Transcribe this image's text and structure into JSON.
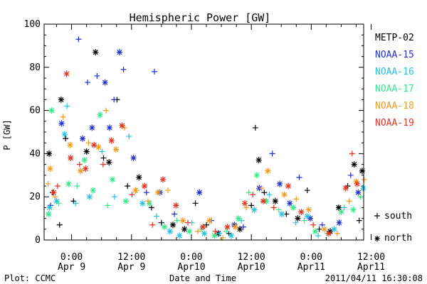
{
  "chart_data": {
    "type": "scatter",
    "title": "Hemispheric Power [GW]",
    "xlabel": "Date and Time",
    "ylabel": "P [GW]",
    "ylim": [
      0,
      100
    ],
    "yticks": [
      0,
      20,
      40,
      60,
      80,
      100
    ],
    "xlim": [
      -5.5,
      58.5
    ],
    "xtick_values": [
      0,
      12,
      24,
      36,
      48,
      60
    ],
    "xtick_labels": [
      {
        "time": "0:00",
        "date": "Apr 9"
      },
      {
        "time": "12:00",
        "date": "Apr 9"
      },
      {
        "time": "0:00",
        "date": "Apr10"
      },
      {
        "time": "12:00",
        "date": "Apr10"
      },
      {
        "time": "0:00",
        "date": "Apr11"
      },
      {
        "time": "12:00",
        "date": "Apr11"
      }
    ],
    "grid": false,
    "legend_placement": "right",
    "series": [
      {
        "name": "METP-02",
        "color": "#000000",
        "values": [
          {
            "x": -4.5,
            "y": 40,
            "h": "north"
          },
          {
            "x": -3.8,
            "y": 22,
            "h": "south"
          },
          {
            "x": -2.4,
            "y": 7,
            "h": "south"
          },
          {
            "x": -2.1,
            "y": 65,
            "h": "north"
          },
          {
            "x": -1.2,
            "y": 47,
            "h": "south"
          },
          {
            "x": 0.4,
            "y": 18,
            "h": "south"
          },
          {
            "x": 3.0,
            "y": 41,
            "h": "north"
          },
          {
            "x": 4.8,
            "y": 87,
            "h": "north"
          },
          {
            "x": 6.4,
            "y": 38,
            "h": "south"
          },
          {
            "x": 7.5,
            "y": 36,
            "h": "north"
          },
          {
            "x": 9.1,
            "y": 65,
            "h": "south"
          },
          {
            "x": 11.2,
            "y": 25,
            "h": "south"
          },
          {
            "x": 13.5,
            "y": 29,
            "h": "north"
          },
          {
            "x": 16.0,
            "y": 15,
            "h": "south"
          },
          {
            "x": 18.0,
            "y": 8,
            "h": "south"
          },
          {
            "x": 20.3,
            "y": 7,
            "h": "north"
          },
          {
            "x": 22.6,
            "y": 5,
            "h": "north"
          },
          {
            "x": 24.8,
            "y": 17,
            "h": "south"
          },
          {
            "x": 27.0,
            "y": 7,
            "h": "south"
          },
          {
            "x": 29.4,
            "y": 3,
            "h": "north"
          },
          {
            "x": 31.5,
            "y": 3,
            "h": "south"
          },
          {
            "x": 33.7,
            "y": 5,
            "h": "north"
          },
          {
            "x": 36.0,
            "y": 16,
            "h": "south"
          },
          {
            "x": 36.8,
            "y": 52,
            "h": "south"
          },
          {
            "x": 37.5,
            "y": 37,
            "h": "north"
          },
          {
            "x": 38.6,
            "y": 22,
            "h": "south"
          },
          {
            "x": 40.8,
            "y": 18,
            "h": "north"
          },
          {
            "x": 43.0,
            "y": 12,
            "h": "south"
          },
          {
            "x": 45.3,
            "y": 10,
            "h": "north"
          },
          {
            "x": 47.2,
            "y": 23,
            "h": "south"
          },
          {
            "x": 49.6,
            "y": 5,
            "h": "south"
          },
          {
            "x": 51.8,
            "y": 4,
            "h": "north"
          },
          {
            "x": 53.5,
            "y": 15,
            "h": "north"
          },
          {
            "x": 55.3,
            "y": 25,
            "h": "south"
          },
          {
            "x": 56.6,
            "y": 35,
            "h": "north"
          },
          {
            "x": 57.6,
            "y": 9,
            "h": "south"
          },
          {
            "x": 58.2,
            "y": 32,
            "h": "north"
          }
        ]
      },
      {
        "name": "NOAA-15",
        "color": "#1f2fd6",
        "values": [
          {
            "x": -4.2,
            "y": 16,
            "h": "south"
          },
          {
            "x": -2.0,
            "y": 54,
            "h": "north"
          },
          {
            "x": 1.4,
            "y": 93,
            "h": "south"
          },
          {
            "x": 2.2,
            "y": 47,
            "h": "north"
          },
          {
            "x": 3.2,
            "y": 73,
            "h": "south"
          },
          {
            "x": 4.1,
            "y": 52,
            "h": "north"
          },
          {
            "x": 5.1,
            "y": 76,
            "h": "south"
          },
          {
            "x": 6.7,
            "y": 73,
            "h": "north"
          },
          {
            "x": 7.6,
            "y": 52,
            "h": "north"
          },
          {
            "x": 8.5,
            "y": 65,
            "h": "south"
          },
          {
            "x": 9.6,
            "y": 87,
            "h": "north"
          },
          {
            "x": 10.4,
            "y": 79,
            "h": "south"
          },
          {
            "x": 12.4,
            "y": 38,
            "h": "north"
          },
          {
            "x": 15.0,
            "y": 22,
            "h": "south"
          },
          {
            "x": 16.6,
            "y": 78,
            "h": "south"
          },
          {
            "x": 17.7,
            "y": 22,
            "h": "north"
          },
          {
            "x": 20.6,
            "y": 12,
            "h": "south"
          },
          {
            "x": 25.6,
            "y": 22,
            "h": "north"
          },
          {
            "x": 28.0,
            "y": 9,
            "h": "south"
          },
          {
            "x": 32.6,
            "y": 7,
            "h": "north"
          },
          {
            "x": 34.4,
            "y": 6,
            "h": "south"
          },
          {
            "x": 37.6,
            "y": 24,
            "h": "north"
          },
          {
            "x": 40.2,
            "y": 40,
            "h": "south"
          },
          {
            "x": 41.7,
            "y": 26,
            "h": "north"
          },
          {
            "x": 43.7,
            "y": 17,
            "h": "north"
          },
          {
            "x": 45.6,
            "y": 29,
            "h": "south"
          },
          {
            "x": 47.8,
            "y": 10,
            "h": "north"
          },
          {
            "x": 50.2,
            "y": 7,
            "h": "south"
          },
          {
            "x": 53.6,
            "y": 8,
            "h": "north"
          },
          {
            "x": 55.9,
            "y": 30,
            "h": "south"
          },
          {
            "x": 57.4,
            "y": 22,
            "h": "north"
          }
        ]
      },
      {
        "name": "NOAA-16",
        "color": "#21c3e0",
        "values": [
          {
            "x": -4.4,
            "y": 15,
            "h": "north"
          },
          {
            "x": -3.0,
            "y": 18,
            "h": "north"
          },
          {
            "x": -1.4,
            "y": 49,
            "h": "north"
          },
          {
            "x": -0.9,
            "y": 62,
            "h": "south"
          },
          {
            "x": 0.8,
            "y": 17,
            "h": "south"
          },
          {
            "x": 3.6,
            "y": 20,
            "h": "north"
          },
          {
            "x": 6.1,
            "y": 41,
            "h": "south"
          },
          {
            "x": 8.6,
            "y": 20,
            "h": "south"
          },
          {
            "x": 11.5,
            "y": 48,
            "h": "south"
          },
          {
            "x": 14.2,
            "y": 17,
            "h": "north"
          },
          {
            "x": 17.0,
            "y": 11,
            "h": "south"
          },
          {
            "x": 19.7,
            "y": 4,
            "h": "north"
          },
          {
            "x": 21.6,
            "y": 2,
            "h": "north"
          },
          {
            "x": 24.1,
            "y": 8,
            "h": "south"
          },
          {
            "x": 26.6,
            "y": 3,
            "h": "north"
          },
          {
            "x": 29.6,
            "y": 3,
            "h": "south"
          },
          {
            "x": 32.0,
            "y": 2,
            "h": "north"
          },
          {
            "x": 34.0,
            "y": 9,
            "h": "south"
          },
          {
            "x": 36.6,
            "y": 14,
            "h": "north"
          },
          {
            "x": 39.6,
            "y": 21,
            "h": "south"
          },
          {
            "x": 42.1,
            "y": 12,
            "h": "north"
          },
          {
            "x": 44.9,
            "y": 8,
            "h": "south"
          },
          {
            "x": 47.2,
            "y": 11,
            "h": "north"
          },
          {
            "x": 49.4,
            "y": 2,
            "h": "south"
          },
          {
            "x": 52.6,
            "y": 5,
            "h": "north"
          },
          {
            "x": 54.6,
            "y": 15,
            "h": "south"
          },
          {
            "x": 58.4,
            "y": 24,
            "h": "north"
          }
        ]
      },
      {
        "name": "NOAA-17",
        "color": "#35e88a",
        "values": [
          {
            "x": -4.6,
            "y": 12,
            "h": "north"
          },
          {
            "x": -4.0,
            "y": 60,
            "h": "north"
          },
          {
            "x": -2.6,
            "y": 17,
            "h": "south"
          },
          {
            "x": -0.6,
            "y": 26,
            "h": "north"
          },
          {
            "x": 1.1,
            "y": 25,
            "h": "south"
          },
          {
            "x": 2.6,
            "y": 37,
            "h": "north"
          },
          {
            "x": 4.3,
            "y": 23,
            "h": "north"
          },
          {
            "x": 5.7,
            "y": 58,
            "h": "north"
          },
          {
            "x": 7.2,
            "y": 16,
            "h": "south"
          },
          {
            "x": 8.2,
            "y": 28,
            "h": "north"
          },
          {
            "x": 10.9,
            "y": 18,
            "h": "north"
          },
          {
            "x": 13.0,
            "y": 23,
            "h": "south"
          },
          {
            "x": 15.6,
            "y": 17,
            "h": "north"
          },
          {
            "x": 18.6,
            "y": 6,
            "h": "north"
          },
          {
            "x": 21.1,
            "y": 9,
            "h": "south"
          },
          {
            "x": 23.6,
            "y": 4,
            "h": "north"
          },
          {
            "x": 26.0,
            "y": 5,
            "h": "south"
          },
          {
            "x": 28.6,
            "y": 2,
            "h": "north"
          },
          {
            "x": 31.0,
            "y": 4,
            "h": "south"
          },
          {
            "x": 33.4,
            "y": 10,
            "h": "north"
          },
          {
            "x": 35.5,
            "y": 22,
            "h": "south"
          },
          {
            "x": 37.1,
            "y": 30,
            "h": "north"
          },
          {
            "x": 39.0,
            "y": 18,
            "h": "north"
          },
          {
            "x": 41.5,
            "y": 14,
            "h": "south"
          },
          {
            "x": 44.4,
            "y": 15,
            "h": "north"
          },
          {
            "x": 46.6,
            "y": 9,
            "h": "south"
          },
          {
            "x": 48.8,
            "y": 4,
            "h": "north"
          },
          {
            "x": 51.2,
            "y": 3,
            "h": "south"
          },
          {
            "x": 54.0,
            "y": 13,
            "h": "north"
          },
          {
            "x": 56.4,
            "y": 14,
            "h": "north"
          },
          {
            "x": 57.9,
            "y": 20,
            "h": "south"
          }
        ]
      },
      {
        "name": "NOAA-18",
        "color": "#f39b1d",
        "values": [
          {
            "x": -4.7,
            "y": 26,
            "h": "south"
          },
          {
            "x": -4.3,
            "y": 33,
            "h": "north"
          },
          {
            "x": -3.3,
            "y": 20,
            "h": "south"
          },
          {
            "x": -1.7,
            "y": 57,
            "h": "south"
          },
          {
            "x": -0.3,
            "y": 44,
            "h": "north"
          },
          {
            "x": 1.8,
            "y": 32,
            "h": "north"
          },
          {
            "x": 3.4,
            "y": 45,
            "h": "south"
          },
          {
            "x": 5.4,
            "y": 43,
            "h": "north"
          },
          {
            "x": 6.9,
            "y": 60,
            "h": "south"
          },
          {
            "x": 8.9,
            "y": 42,
            "h": "north"
          },
          {
            "x": 10.6,
            "y": 52,
            "h": "south"
          },
          {
            "x": 12.8,
            "y": 23,
            "h": "north"
          },
          {
            "x": 15.3,
            "y": 18,
            "h": "south"
          },
          {
            "x": 17.3,
            "y": 22,
            "h": "north"
          },
          {
            "x": 19.3,
            "y": 23,
            "h": "south"
          },
          {
            "x": 22.3,
            "y": 9,
            "h": "north"
          },
          {
            "x": 25.3,
            "y": 4,
            "h": "south"
          },
          {
            "x": 27.6,
            "y": 9,
            "h": "north"
          },
          {
            "x": 30.3,
            "y": 1,
            "h": "south"
          },
          {
            "x": 32.8,
            "y": 6,
            "h": "north"
          },
          {
            "x": 35.0,
            "y": 15,
            "h": "south"
          },
          {
            "x": 38.1,
            "y": 24,
            "h": "south"
          },
          {
            "x": 39.3,
            "y": 32,
            "h": "north"
          },
          {
            "x": 42.6,
            "y": 21,
            "h": "north"
          },
          {
            "x": 45.0,
            "y": 19,
            "h": "south"
          },
          {
            "x": 47.5,
            "y": 14,
            "h": "north"
          },
          {
            "x": 50.6,
            "y": 5,
            "h": "north"
          },
          {
            "x": 53.2,
            "y": 3,
            "h": "south"
          },
          {
            "x": 55.6,
            "y": 18,
            "h": "south"
          },
          {
            "x": 57.0,
            "y": 27,
            "h": "north"
          },
          {
            "x": 58.6,
            "y": 28,
            "h": "south"
          }
        ]
      },
      {
        "name": "NOAA-19",
        "color": "#e8311e",
        "values": [
          {
            "x": -3.6,
            "y": 22,
            "h": "north"
          },
          {
            "x": -2.8,
            "y": 25,
            "h": "south"
          },
          {
            "x": -1.0,
            "y": 77,
            "h": "north"
          },
          {
            "x": -0.2,
            "y": 38,
            "h": "north"
          },
          {
            "x": 1.6,
            "y": 35,
            "h": "south"
          },
          {
            "x": 2.8,
            "y": 33,
            "h": "north"
          },
          {
            "x": 4.5,
            "y": 44,
            "h": "north"
          },
          {
            "x": 6.3,
            "y": 35,
            "h": "south"
          },
          {
            "x": 8.0,
            "y": 46,
            "h": "north"
          },
          {
            "x": 10.1,
            "y": 53,
            "h": "north"
          },
          {
            "x": 12.1,
            "y": 21,
            "h": "south"
          },
          {
            "x": 14.6,
            "y": 25,
            "h": "north"
          },
          {
            "x": 16.2,
            "y": 7,
            "h": "south"
          },
          {
            "x": 18.3,
            "y": 28,
            "h": "north"
          },
          {
            "x": 20.9,
            "y": 16,
            "h": "north"
          },
          {
            "x": 23.3,
            "y": 8,
            "h": "south"
          },
          {
            "x": 26.3,
            "y": 6,
            "h": "north"
          },
          {
            "x": 28.8,
            "y": 4,
            "h": "south"
          },
          {
            "x": 31.2,
            "y": 6,
            "h": "north"
          },
          {
            "x": 34.7,
            "y": 17,
            "h": "north"
          },
          {
            "x": 36.3,
            "y": 21,
            "h": "south"
          },
          {
            "x": 38.4,
            "y": 18,
            "h": "north"
          },
          {
            "x": 40.5,
            "y": 15,
            "h": "south"
          },
          {
            "x": 43.4,
            "y": 25,
            "h": "north"
          },
          {
            "x": 46.0,
            "y": 13,
            "h": "north"
          },
          {
            "x": 48.4,
            "y": 7,
            "h": "south"
          },
          {
            "x": 51.5,
            "y": 3,
            "h": "north"
          },
          {
            "x": 54.9,
            "y": 24,
            "h": "north"
          },
          {
            "x": 56.2,
            "y": 40,
            "h": "south"
          },
          {
            "x": 57.2,
            "y": 26,
            "h": "north"
          }
        ]
      }
    ],
    "marker_legend": [
      {
        "symbol": "+",
        "label": "south"
      },
      {
        "symbol": "*",
        "label": "north"
      }
    ]
  },
  "footer": {
    "left": "Plot: CCMC",
    "right": "2011/04/11 16:30:08"
  }
}
